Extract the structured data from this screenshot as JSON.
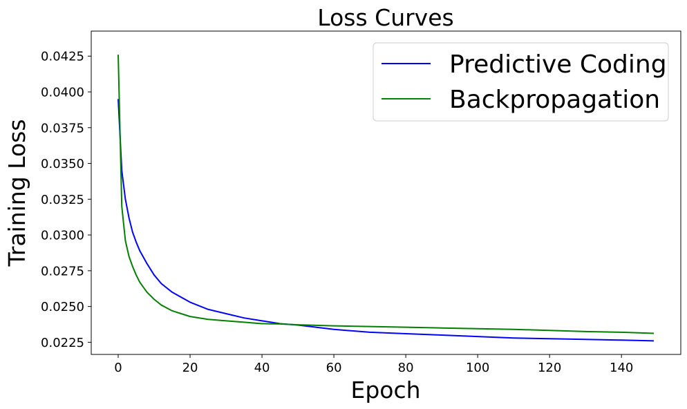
{
  "chart_data": {
    "type": "line",
    "title": "Loss Curves",
    "xlabel": "Epoch",
    "ylabel": "Training Loss",
    "xlim": [
      -7.5,
      156.5
    ],
    "ylim": [
      0.02165,
      0.04425
    ],
    "xticks": [
      0,
      20,
      40,
      60,
      80,
      100,
      120,
      140
    ],
    "xtick_labels": [
      "0",
      "20",
      "40",
      "60",
      "80",
      "100",
      "120",
      "140"
    ],
    "yticks": [
      0.0225,
      0.025,
      0.0275,
      0.03,
      0.0325,
      0.035,
      0.0375,
      0.04,
      0.0425
    ],
    "ytick_labels": [
      "0.0225",
      "0.0250",
      "0.0275",
      "0.0300",
      "0.0325",
      "0.0350",
      "0.0375",
      "0.0400",
      "0.0425"
    ],
    "grid": false,
    "legend_position": "top-right",
    "series": [
      {
        "name": "Predictive Coding",
        "color": "#0000ff",
        "x": [
          0,
          1,
          2,
          3,
          4,
          5,
          6,
          8,
          10,
          12,
          15,
          20,
          25,
          30,
          35,
          40,
          45,
          50,
          60,
          70,
          80,
          90,
          100,
          110,
          120,
          130,
          140,
          149
        ],
        "y": [
          0.0395,
          0.0345,
          0.0325,
          0.0312,
          0.0302,
          0.0295,
          0.0289,
          0.028,
          0.0272,
          0.0266,
          0.026,
          0.0253,
          0.0248,
          0.0245,
          0.0242,
          0.024,
          0.0238,
          0.0237,
          0.0234,
          0.0232,
          0.0231,
          0.023,
          0.0229,
          0.0228,
          0.02275,
          0.0227,
          0.02265,
          0.0226
        ]
      },
      {
        "name": "Backpropagation",
        "color": "#008000",
        "x": [
          0,
          1,
          2,
          3,
          4,
          5,
          6,
          8,
          10,
          12,
          15,
          20,
          25,
          30,
          35,
          40,
          45,
          50,
          60,
          70,
          80,
          90,
          100,
          110,
          120,
          130,
          140,
          149
        ],
        "y": [
          0.0426,
          0.032,
          0.0296,
          0.0285,
          0.0278,
          0.0272,
          0.0267,
          0.026,
          0.0255,
          0.0251,
          0.0247,
          0.0243,
          0.0241,
          0.024,
          0.0239,
          0.0238,
          0.02378,
          0.02372,
          0.02365,
          0.0236,
          0.02355,
          0.0235,
          0.02345,
          0.0234,
          0.02333,
          0.02325,
          0.0232,
          0.02312
        ]
      }
    ]
  }
}
